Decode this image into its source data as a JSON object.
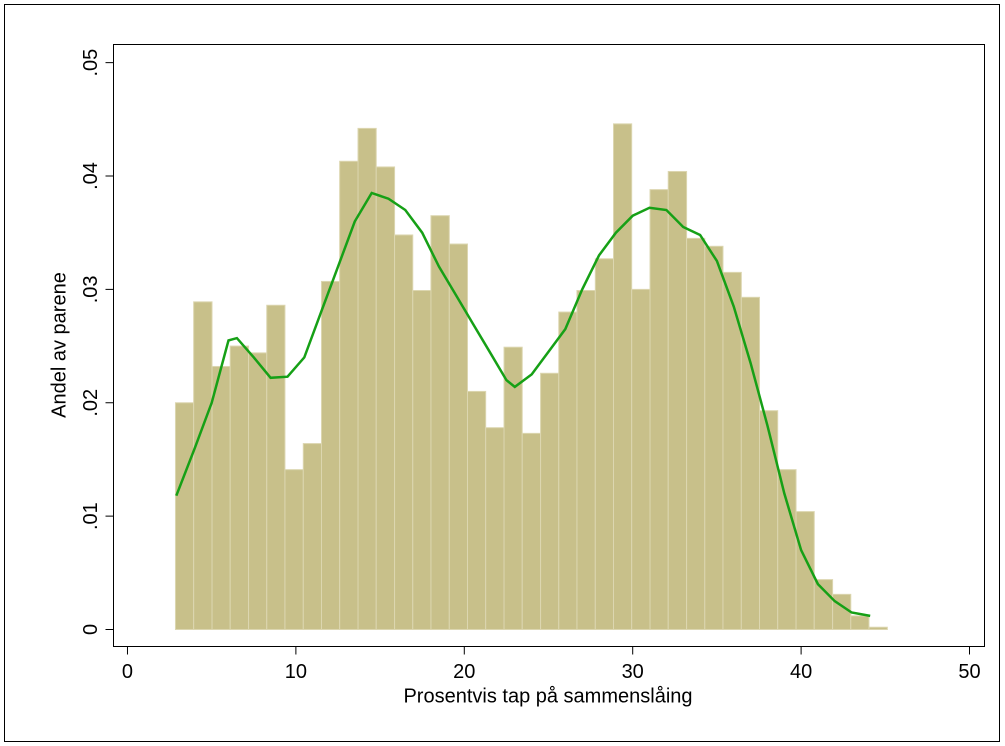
{
  "chart_data": {
    "type": "histogram",
    "xlabel": "Prosentvis tap på sammenslåing",
    "ylabel": "Andel av parene",
    "bins": [
      2.85,
      3.93,
      5.02,
      6.1,
      7.19,
      8.27,
      9.35,
      10.44,
      11.52,
      12.6,
      13.69,
      14.77,
      15.86,
      16.94,
      18.02,
      19.11,
      20.19,
      21.27,
      22.36,
      23.44,
      24.53,
      25.61,
      26.69,
      27.78,
      28.86,
      29.94,
      31.03,
      32.11,
      33.2,
      34.28,
      35.36,
      36.45,
      37.53,
      38.61,
      39.7,
      40.78,
      41.87,
      42.95,
      44.03,
      45.12
    ],
    "values": [
      0.02,
      0.0289,
      0.0232,
      0.025,
      0.0244,
      0.0286,
      0.0141,
      0.0164,
      0.0307,
      0.0413,
      0.0442,
      0.0408,
      0.0348,
      0.0299,
      0.0365,
      0.034,
      0.021,
      0.0178,
      0.0249,
      0.0173,
      0.0226,
      0.028,
      0.0299,
      0.0327,
      0.0446,
      0.03,
      0.0388,
      0.0404,
      0.0345,
      0.0338,
      0.0315,
      0.0293,
      0.0193,
      0.0141,
      0.0104,
      0.0044,
      0.0031,
      0.0012,
      0.0002
    ],
    "color": "#c8c08a",
    "density": {
      "color": "#16a016",
      "x": [
        2.9,
        4,
        5,
        6,
        6.5,
        7.5,
        8.5,
        9.5,
        10.5,
        11.5,
        12.5,
        13.5,
        14.5,
        15.5,
        16.5,
        17.5,
        18.5,
        19.5,
        20.5,
        21.5,
        22.5,
        23,
        24,
        25,
        26,
        27,
        28,
        29,
        30,
        31,
        32,
        33,
        34,
        35,
        36,
        37,
        38,
        39,
        40,
        41,
        42,
        43,
        44.1
      ],
      "values": [
        0.0118,
        0.016,
        0.02,
        0.0255,
        0.0257,
        0.024,
        0.0222,
        0.0223,
        0.024,
        0.028,
        0.032,
        0.036,
        0.0385,
        0.038,
        0.037,
        0.035,
        0.032,
        0.0295,
        0.027,
        0.0245,
        0.022,
        0.0214,
        0.0225,
        0.0245,
        0.0265,
        0.03,
        0.033,
        0.035,
        0.0365,
        0.0372,
        0.037,
        0.0355,
        0.0348,
        0.0325,
        0.0285,
        0.0235,
        0.018,
        0.012,
        0.007,
        0.004,
        0.0025,
        0.0015,
        0.0012
      ]
    },
    "xlim": [
      -0.83,
      50.89
    ],
    "ylim": [
      -0.0015,
      0.0516
    ],
    "xticks": [
      0,
      10,
      20,
      30,
      40,
      50
    ],
    "yticks": [
      0,
      {
        "value": 0.01,
        "label": ".01"
      },
      {
        "value": 0.02,
        "label": ".02"
      },
      {
        "value": 0.03,
        "label": ".03"
      },
      {
        "value": 0.04,
        "label": ".04"
      },
      {
        "value": 0.05,
        "label": ".05"
      }
    ]
  }
}
